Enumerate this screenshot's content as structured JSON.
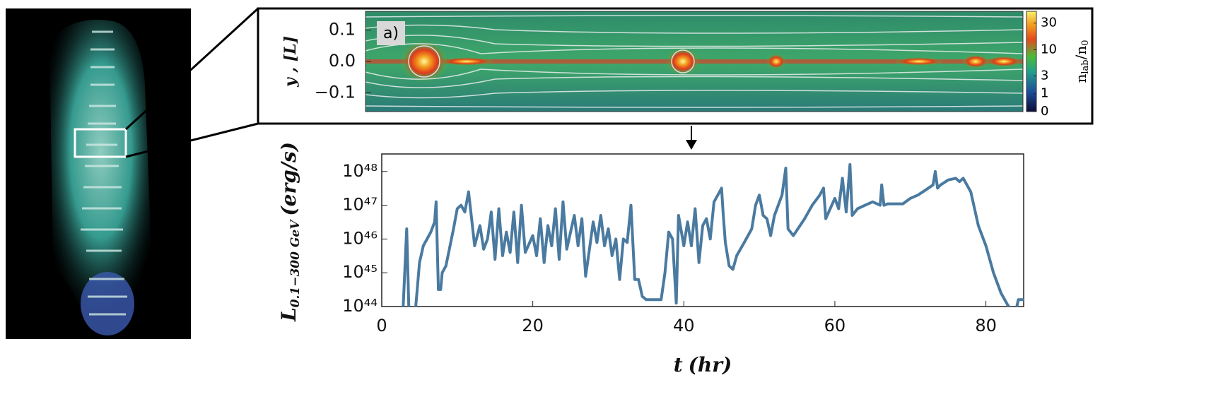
{
  "chart_data": [
    {
      "type": "heatmap",
      "annotation": "a)",
      "ylabel": "y , [L]",
      "ylim": [
        -0.16,
        0.16
      ],
      "yticks": [
        0.1,
        {
          "value": 0,
          "label": "0.0"
        },
        {
          "value": -0.1,
          "label": "−0.1"
        }
      ],
      "colorbar_lim": [
        0,
        48
      ],
      "colorbar_ticks": [
        0,
        1,
        3,
        10,
        30
      ],
      "colorbar_label": [
        "n",
        "lab",
        "/n",
        "0"
      ]
    },
    {
      "type": "line",
      "color": "#4a7aa0",
      "log_y": true,
      "xlabel": {
        "symbol": "t",
        "unit": "(hr)"
      },
      "ylabel": {
        "symbol": "L",
        "subscript": "0.1−300 GeV",
        "unit": "(erg/s)"
      },
      "xlim": [
        0,
        85
      ],
      "xticks": [
        0,
        20,
        40,
        60,
        80
      ],
      "ylim": [
        1e+44,
        3.3e+48
      ],
      "yticks": [
        {
          "value": 1e+44,
          "label": "10⁴⁴"
        },
        {
          "value": 1e+45,
          "label": "10⁴⁵"
        },
        {
          "value": 1e+46,
          "label": "10⁴⁶"
        },
        {
          "value": 1e+47,
          "label": "10⁴⁷"
        },
        {
          "value": 1e+48,
          "label": "10⁴⁸"
        }
      ],
      "x": [
        2.8,
        3.3,
        3.6,
        4.5,
        5,
        5.5,
        6,
        6.5,
        7,
        7.2,
        7.5,
        7.8,
        8,
        8.5,
        9.5,
        10,
        10.5,
        11,
        11.5,
        12,
        12.3,
        13,
        13.5,
        14,
        14.5,
        15,
        15.5,
        16,
        16.5,
        17,
        17.5,
        18,
        18.5,
        19,
        20,
        20.5,
        21,
        21.5,
        22,
        22.5,
        23,
        23.5,
        24,
        24.5,
        25,
        25.5,
        26,
        26.5,
        27,
        27.5,
        28,
        28.5,
        29,
        29.5,
        30,
        30.5,
        31,
        31.5,
        32,
        32.5,
        33,
        33.5,
        34,
        34.5,
        35,
        36,
        37,
        37.5,
        38,
        38.5,
        39,
        39.3,
        40,
        40.5,
        41,
        41.5,
        42,
        42.5,
        43,
        43.5,
        44,
        44.5,
        45,
        45.2,
        45.5,
        46,
        46.5,
        47,
        48,
        49,
        49.5,
        50,
        50.5,
        51,
        51.5,
        52,
        53,
        53.5,
        53.8,
        54.5,
        56,
        57,
        58,
        58.5,
        58.8,
        60,
        60.5,
        61,
        61.5,
        62,
        62.3,
        63,
        64,
        65,
        66,
        66.2,
        66.5,
        67,
        68,
        69,
        70,
        71,
        72,
        73,
        73.3,
        73.6,
        74,
        75,
        76,
        76.5,
        77,
        78,
        79,
        80,
        81,
        82,
        83,
        84,
        84.3,
        85
      ],
      "values": [
        6.3e+43,
        2e+46,
        6.3e+43,
        1e+44,
        2e+45,
        6.3e+45,
        1e+46,
        1.6e+46,
        3.2e+46,
        1.26e+47,
        3.2e+44,
        3.2e+44,
        1e+45,
        1.6e+45,
        2e+46,
        7.9e+46,
        1e+47,
        6.3e+46,
        2.5e+47,
        2.5e+46,
        6.3e+45,
        2.5e+46,
        5e+45,
        1e+46,
        6.3e+46,
        2.5e+45,
        7.9e+46,
        3.2e+45,
        1.6e+46,
        4e+45,
        6.3e+46,
        2e+45,
        1e+47,
        4e+45,
        1.26e+46,
        3.2e+45,
        4e+46,
        2e+45,
        2.5e+46,
        6.3e+45,
        7.9e+46,
        2.5e+45,
        1.26e+47,
        5e+45,
        1.6e+46,
        5e+46,
        6.3e+45,
        4e+46,
        7.9e+44,
        5e+45,
        3.2e+46,
        7.9e+45,
        5e+46,
        6.3e+45,
        2e+46,
        3.2e+45,
        1e+46,
        6.3e+44,
        1e+46,
        7.9e+45,
        1e+47,
        6.3e+44,
        6.3e+44,
        2e+44,
        1.6e+44,
        1.6e+44,
        1.6e+44,
        1e+45,
        1.6e+46,
        1e+46,
        1.26e+44,
        5e+46,
        6.3e+45,
        3.2e+46,
        6.3e+45,
        7.9e+46,
        2e+45,
        2.5e+46,
        4e+46,
        1e+46,
        1.26e+47,
        2e+47,
        3.2e+47,
        6.3e+46,
        7.9e+45,
        1.6e+45,
        1.26e+45,
        3.2e+45,
        7.9e+45,
        2e+46,
        1e+47,
        2e+47,
        5e+46,
        4e+46,
        1.26e+46,
        5e+46,
        2e+47,
        1.26e+48,
        2e+46,
        1.26e+46,
        4e+46,
        1e+47,
        2e+47,
        3.2e+47,
        4e+46,
        1.6e+47,
        7.9e+46,
        6.3e+47,
        6.3e+46,
        1.6e+48,
        5e+46,
        7.9e+46,
        1e+47,
        1.26e+47,
        1e+47,
        4e+47,
        1e+47,
        1.1e+47,
        1.1e+47,
        1.1e+47,
        1.6e+47,
        2e+47,
        2.8e+47,
        4e+47,
        1e+48,
        3.2e+47,
        4e+47,
        5.6e+47,
        6.3e+47,
        5e+47,
        6.3e+47,
        2.5e+47,
        2.5e+46,
        6.3e+45,
        1e+45,
        2.5e+44,
        1e+44,
        7.9e+43,
        1.6e+44,
        1.6e+44
      ]
    }
  ]
}
